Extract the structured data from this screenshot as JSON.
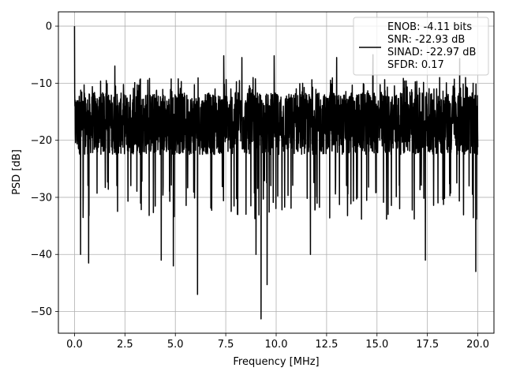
{
  "chart_data": {
    "type": "line",
    "title": "",
    "xlabel": "Frequency [MHz]",
    "ylabel": "PSD [dB]",
    "xlim": [
      -0.8,
      20.8
    ],
    "ylim": [
      -53.8,
      2.5
    ],
    "xticks": [
      0.0,
      2.5,
      5.0,
      7.5,
      10.0,
      12.5,
      15.0,
      17.5,
      20.0
    ],
    "xtick_labels": [
      "0.0",
      "2.5",
      "5.0",
      "7.5",
      "10.0",
      "12.5",
      "15.0",
      "17.5",
      "20.0"
    ],
    "yticks": [
      0,
      -10,
      -20,
      -30,
      -40,
      -50
    ],
    "ytick_labels": [
      "0",
      "−10",
      "−20",
      "−30",
      "−40",
      "−50"
    ],
    "grid": true,
    "legend_position": "top-right",
    "legend_lines": [
      "ENOB: -4.11 bits",
      "SNR: -22.93 dB",
      "SINAD: -22.97 dB",
      "SFDR: 0.17"
    ],
    "series": [
      {
        "color": "#000000",
        "x_range": [
          0,
          20
        ],
        "noise_floor_band": [
          -27,
          -9
        ],
        "peaks": [
          {
            "x": 0.0,
            "y": 0
          },
          {
            "x": 0.02,
            "y": -14
          },
          {
            "x": 0.3,
            "y": -40
          },
          {
            "x": 0.7,
            "y": -41.5
          },
          {
            "x": 4.3,
            "y": -41
          },
          {
            "x": 4.9,
            "y": -42
          },
          {
            "x": 6.1,
            "y": -47
          },
          {
            "x": 9.0,
            "y": -40
          },
          {
            "x": 9.25,
            "y": -51.3
          },
          {
            "x": 9.55,
            "y": -45.3
          },
          {
            "x": 11.7,
            "y": -40
          },
          {
            "x": 17.4,
            "y": -41
          },
          {
            "x": 19.9,
            "y": -43
          },
          {
            "x": 2.0,
            "y": -7
          },
          {
            "x": 7.4,
            "y": -5.2
          },
          {
            "x": 8.3,
            "y": -5.5
          },
          {
            "x": 9.9,
            "y": -5.2
          },
          {
            "x": 13.0,
            "y": -5.5
          },
          {
            "x": 14.8,
            "y": -5.0
          },
          {
            "x": 19.1,
            "y": -5.7
          }
        ]
      }
    ]
  }
}
